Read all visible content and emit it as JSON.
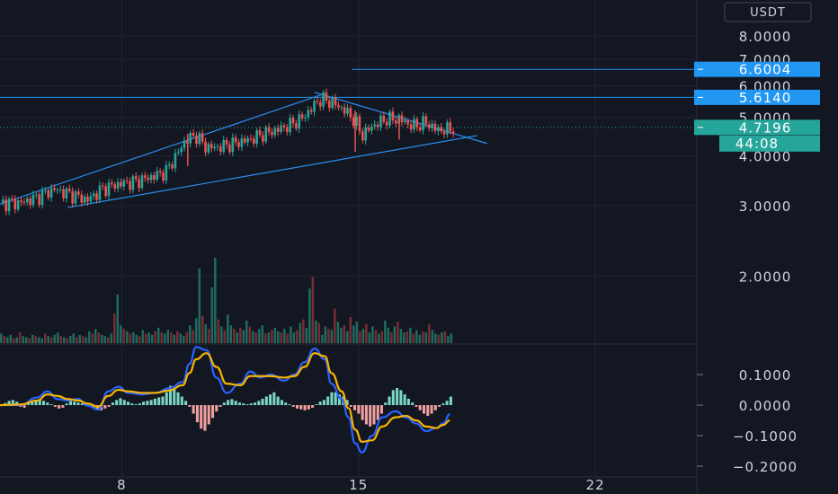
{
  "currency": "USDT",
  "chart_data": [
    {
      "type": "candlestick",
      "panel": "price",
      "yscale": "log",
      "ylim": [
        1.35,
        9.6
      ],
      "y_ticks": [
        "8.0000",
        "7.0000",
        "6.0000",
        "5.0000",
        "4.0000",
        "3.0000",
        "2.0000"
      ],
      "y_tick_values": [
        8,
        7,
        6,
        5,
        4,
        3,
        2
      ],
      "x_ticks": [
        "8",
        "15",
        "22"
      ],
      "x_tick_values": [
        8,
        15,
        22
      ],
      "xlim": [
        4.4,
        25.0
      ],
      "price_levels": [
        {
          "label": "6.6004",
          "value": 6.6004,
          "color": "#2196f3",
          "x_start": 14.8
        },
        {
          "label": "5.6140",
          "value": 5.614,
          "color": "#2196f3",
          "x_start": 4.4
        }
      ],
      "last_price": {
        "label": "4.7196",
        "value": 4.7196,
        "countdown": "44:08",
        "color": "#26a69a"
      },
      "trendlines": [
        {
          "from": [
            4.4,
            3.03
          ],
          "to": [
            13.9,
            5.7
          ]
        },
        {
          "from": [
            6.4,
            2.97
          ],
          "to": [
            18.5,
            4.5
          ]
        },
        {
          "from": [
            13.7,
            5.78
          ],
          "to": [
            18.8,
            4.3
          ]
        }
      ],
      "price_path": [
        [
          4.4,
          3.05
        ],
        [
          5.0,
          3.05
        ],
        [
          5.5,
          3.15
        ],
        [
          6.0,
          3.3
        ],
        [
          6.5,
          3.2
        ],
        [
          7.0,
          3.1
        ],
        [
          7.4,
          3.3
        ],
        [
          7.9,
          3.4
        ],
        [
          8.4,
          3.45
        ],
        [
          8.9,
          3.55
        ],
        [
          9.3,
          3.65
        ],
        [
          9.6,
          4.0
        ],
        [
          9.9,
          4.4
        ],
        [
          10.2,
          4.5
        ],
        [
          10.5,
          4.2
        ],
        [
          10.8,
          4.2
        ],
        [
          11.3,
          4.3
        ],
        [
          11.8,
          4.4
        ],
        [
          12.2,
          4.55
        ],
        [
          12.6,
          4.65
        ],
        [
          13.0,
          4.8
        ],
        [
          13.3,
          4.95
        ],
        [
          13.6,
          5.25
        ],
        [
          13.8,
          5.5
        ],
        [
          14.0,
          5.55
        ],
        [
          14.3,
          5.4
        ],
        [
          14.6,
          5.2
        ],
        [
          14.9,
          4.9
        ],
        [
          15.1,
          4.5
        ],
        [
          15.4,
          4.75
        ],
        [
          15.8,
          4.95
        ],
        [
          16.2,
          4.95
        ],
        [
          16.6,
          4.75
        ],
        [
          17.0,
          4.85
        ],
        [
          17.3,
          4.65
        ],
        [
          17.6,
          4.65
        ],
        [
          17.8,
          4.7
        ]
      ],
      "wicks": [
        {
          "x": 9.95,
          "low": 3.78,
          "high": 4.55
        },
        {
          "x": 14.9,
          "low": 4.1,
          "high": 5.2
        },
        {
          "x": 16.2,
          "low": 4.4,
          "high": 5.0
        }
      ]
    },
    {
      "type": "bar",
      "panel": "volume",
      "series": [
        {
          "values": [
            0.8,
            0.6,
            0.5,
            0.7,
            0.4,
            0.5,
            0.9,
            0.6,
            0.5,
            0.4,
            0.7,
            0.6,
            0.5,
            0.4,
            0.8,
            0.6,
            0.5,
            0.7,
            0.9,
            0.6,
            0.5,
            0.4,
            0.6,
            0.8,
            0.5,
            0.7,
            0.6,
            0.5,
            1.0,
            0.8,
            1.2,
            0.9,
            0.7,
            0.6,
            0.5,
            0.8,
            2.5,
            4.1,
            1.5,
            1.2,
            1.0,
            0.8,
            0.9,
            0.7,
            0.6,
            1.1,
            0.8,
            0.9,
            0.7,
            1.0,
            1.3,
            0.9,
            0.8,
            1.1,
            0.9,
            0.7,
            1.0,
            0.8,
            0.6,
            0.9,
            1.5,
            1.1,
            2.1,
            6.3,
            2.3,
            1.6,
            1.2,
            4.7,
            7.2,
            2.0,
            1.4,
            1.1,
            2.4,
            1.5,
            1.2,
            0.9,
            1.3,
            1.1,
            1.9,
            1.4,
            1.0,
            0.9,
            1.2,
            1.5,
            0.8,
            0.9,
            1.1,
            1.3,
            1.0,
            0.9,
            1.2,
            0.8,
            1.4,
            0.9,
            1.1,
            1.7,
            2.0,
            1.3,
            4.6,
            5.6,
            1.9,
            1.7,
            0.7,
            1.4,
            1.2,
            1.1,
            2.9,
            1.8,
            1.3,
            1.5,
            1.0,
            2.2,
            1.5,
            1.8,
            1.0,
            1.2,
            1.6,
            0.9,
            1.4,
            1.1,
            0.8,
            1.0,
            1.9,
            1.3,
            0.9,
            1.4,
            1.8,
            1.2,
            0.9,
            1.0,
            1.3,
            0.8,
            1.1,
            0.7,
            1.0,
            0.9,
            1.6,
            1.1,
            0.8,
            0.7,
            0.9,
            1.0,
            0.6,
            0.8
          ]
        }
      ]
    },
    {
      "type": "line",
      "panel": "oscillator",
      "ylim": [
        -0.235,
        0.2
      ],
      "y_ticks": [
        "0.1000",
        "0.0000",
        "−0.1000",
        "−0.2000"
      ],
      "y_tick_values": [
        0.1,
        0.0,
        -0.1,
        -0.2
      ],
      "series": [
        {
          "color": "#2962ff",
          "points": [
            [
              4.4,
              0.0
            ],
            [
              5.0,
              0.0
            ],
            [
              5.5,
              0.025
            ],
            [
              5.8,
              0.045
            ],
            [
              6.1,
              0.02
            ],
            [
              6.4,
              0.015
            ],
            [
              6.7,
              0.02
            ],
            [
              7.0,
              -0.002
            ],
            [
              7.3,
              -0.015
            ],
            [
              7.6,
              0.045
            ],
            [
              7.9,
              0.06
            ],
            [
              8.2,
              0.04
            ],
            [
              8.6,
              0.035
            ],
            [
              9.0,
              0.04
            ],
            [
              9.4,
              0.055
            ],
            [
              9.8,
              0.075
            ],
            [
              10.0,
              0.135
            ],
            [
              10.2,
              0.19
            ],
            [
              10.5,
              0.18
            ],
            [
              10.8,
              0.09
            ],
            [
              11.1,
              0.04
            ],
            [
              11.5,
              0.07
            ],
            [
              11.8,
              0.11
            ],
            [
              12.1,
              0.09
            ],
            [
              12.4,
              0.1
            ],
            [
              12.8,
              0.08
            ],
            [
              13.1,
              0.1
            ],
            [
              13.4,
              0.14
            ],
            [
              13.7,
              0.185
            ],
            [
              14.0,
              0.15
            ],
            [
              14.2,
              0.07
            ],
            [
              14.5,
              0.02
            ],
            [
              14.7,
              -0.04
            ],
            [
              14.9,
              -0.125
            ],
            [
              15.1,
              -0.155
            ],
            [
              15.4,
              -0.1
            ],
            [
              15.7,
              -0.04
            ],
            [
              16.1,
              -0.02
            ],
            [
              16.4,
              -0.04
            ],
            [
              16.7,
              -0.06
            ],
            [
              17.0,
              -0.085
            ],
            [
              17.3,
              -0.075
            ],
            [
              17.5,
              -0.06
            ],
            [
              17.7,
              -0.03
            ]
          ]
        },
        {
          "color": "#f7b400",
          "points": [
            [
              4.4,
              0.0
            ],
            [
              5.0,
              0.002
            ],
            [
              5.5,
              0.015
            ],
            [
              5.8,
              0.035
            ],
            [
              6.1,
              0.03
            ],
            [
              6.4,
              0.02
            ],
            [
              6.7,
              0.015
            ],
            [
              7.0,
              0.005
            ],
            [
              7.3,
              -0.005
            ],
            [
              7.6,
              0.03
            ],
            [
              7.9,
              0.05
            ],
            [
              8.2,
              0.045
            ],
            [
              8.6,
              0.04
            ],
            [
              9.0,
              0.04
            ],
            [
              9.4,
              0.048
            ],
            [
              9.8,
              0.065
            ],
            [
              10.0,
              0.105
            ],
            [
              10.2,
              0.15
            ],
            [
              10.5,
              0.17
            ],
            [
              10.8,
              0.125
            ],
            [
              11.1,
              0.07
            ],
            [
              11.5,
              0.065
            ],
            [
              11.8,
              0.095
            ],
            [
              12.1,
              0.095
            ],
            [
              12.4,
              0.095
            ],
            [
              12.8,
              0.09
            ],
            [
              13.1,
              0.095
            ],
            [
              13.4,
              0.125
            ],
            [
              13.7,
              0.17
            ],
            [
              14.0,
              0.16
            ],
            [
              14.2,
              0.105
            ],
            [
              14.5,
              0.045
            ],
            [
              14.7,
              -0.01
            ],
            [
              14.9,
              -0.08
            ],
            [
              15.1,
              -0.12
            ],
            [
              15.4,
              -0.115
            ],
            [
              15.7,
              -0.07
            ],
            [
              16.1,
              -0.04
            ],
            [
              16.4,
              -0.035
            ],
            [
              16.7,
              -0.05
            ],
            [
              17.0,
              -0.07
            ],
            [
              17.3,
              -0.075
            ],
            [
              17.5,
              -0.065
            ],
            [
              17.7,
              -0.05
            ]
          ]
        }
      ],
      "histogram": [
        0.0,
        0.005,
        0.01,
        0.012,
        0.008,
        -0.004,
        -0.006,
        0.005,
        0.01,
        0.012,
        0.014,
        0.01,
        0.006,
        0.002,
        -0.004,
        -0.008,
        -0.006,
        0.004,
        0.01,
        0.008,
        0.006,
        0.004,
        0.002,
        -0.002,
        -0.006,
        -0.01,
        -0.012,
        -0.008,
        -0.004,
        0.006,
        0.012,
        0.016,
        0.012,
        0.008,
        0.004,
        0.002,
        0.004,
        0.008,
        0.01,
        0.012,
        0.015,
        0.018,
        0.02,
        0.03,
        0.045,
        0.04,
        0.03,
        0.02,
        0.01,
        -0.004,
        -0.02,
        -0.04,
        -0.055,
        -0.06,
        -0.045,
        -0.03,
        -0.015,
        -0.004,
        0.006,
        0.012,
        0.014,
        0.01,
        0.006,
        0.004,
        0.002,
        0.004,
        0.006,
        0.01,
        0.015,
        0.02,
        0.025,
        0.03,
        0.02,
        0.012,
        0.006,
        0.002,
        -0.004,
        -0.008,
        -0.01,
        -0.012,
        -0.01,
        -0.006,
        0.002,
        0.008,
        0.012,
        0.02,
        0.03,
        0.03,
        0.025,
        0.02,
        0.012,
        -0.004,
        -0.012,
        -0.02,
        -0.035,
        -0.045,
        -0.05,
        -0.045,
        -0.035,
        -0.02,
        0.006,
        0.02,
        0.035,
        0.04,
        0.035,
        0.025,
        0.015,
        0.006,
        -0.004,
        -0.012,
        -0.02,
        -0.025,
        -0.02,
        -0.012,
        -0.004,
        0.004,
        0.01,
        0.02
      ]
    }
  ]
}
